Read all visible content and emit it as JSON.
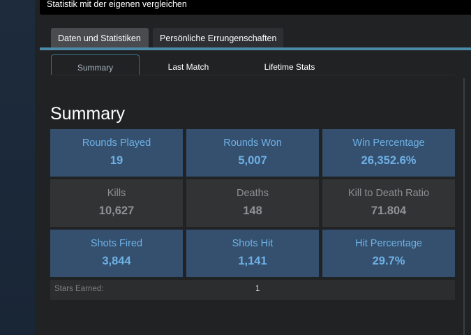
{
  "header": {
    "title": "Statistik mit der eigenen vergleichen"
  },
  "main_tabs": [
    {
      "label": "Daten und Statistiken",
      "active": true
    },
    {
      "label": "Persönliche Errungenschaften",
      "active": false
    }
  ],
  "sub_tabs": [
    {
      "label": "Summary",
      "active": true
    },
    {
      "label": "Last Match",
      "active": false
    },
    {
      "label": "Lifetime Stats",
      "active": false
    }
  ],
  "summary": {
    "title": "Summary",
    "stats": [
      {
        "label": "Rounds Played",
        "value": "19",
        "style": "blue"
      },
      {
        "label": "Rounds Won",
        "value": "5,007",
        "style": "blue"
      },
      {
        "label": "Win Percentage",
        "value": "26,352.6%",
        "style": "blue"
      },
      {
        "label": "Kills",
        "value": "10,627",
        "style": "gray"
      },
      {
        "label": "Deaths",
        "value": "148",
        "style": "gray"
      },
      {
        "label": "Kill to Death Ratio",
        "value": "71.804",
        "style": "gray"
      },
      {
        "label": "Shots Fired",
        "value": "3,844",
        "style": "blue"
      },
      {
        "label": "Shots Hit",
        "value": "1,141",
        "style": "blue"
      },
      {
        "label": "Hit Percentage",
        "value": "29.7%",
        "style": "blue"
      }
    ],
    "stars": {
      "label": "Stars Earned:",
      "value": "1"
    }
  },
  "colors": {
    "accent_blue": "#6fb1e6",
    "blue_box": "#34506e",
    "gray_box": "#323335",
    "tab_underline": "#4b8aa8"
  }
}
